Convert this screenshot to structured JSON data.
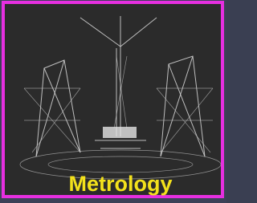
{
  "image": {
    "label": "Metrology"
  }
}
